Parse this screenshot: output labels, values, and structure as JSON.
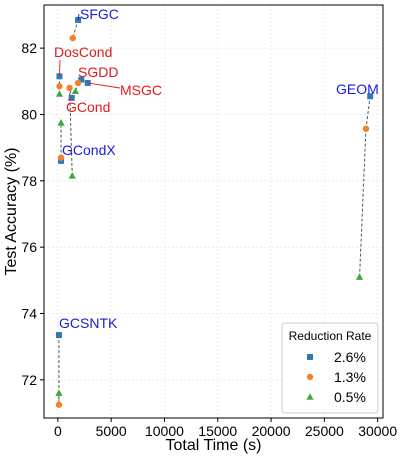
{
  "chart_data": {
    "type": "scatter",
    "xlabel": "Total Time (s)",
    "ylabel": "Test Accuracy (%)",
    "xlim": [
      -1300,
      30500
    ],
    "ylim": [
      70.85,
      83.3
    ],
    "xticks": [
      0,
      5000,
      10000,
      15000,
      20000,
      25000,
      30000
    ],
    "xtick_labels": [
      "0",
      "5000",
      "10000",
      "15000",
      "20000",
      "25000",
      "30000"
    ],
    "yticks": [
      72,
      74,
      76,
      78,
      80,
      82
    ],
    "ytick_labels": [
      "72",
      "74",
      "76",
      "78",
      "80",
      "82"
    ],
    "grid": true,
    "legend": {
      "title": "Reduction Rate",
      "position": "bottom-right",
      "entries": [
        {
          "label": "2.6%",
          "marker": "square",
          "color": "#2f7ab5"
        },
        {
          "label": "1.3%",
          "marker": "circle",
          "color": "#f0822b"
        },
        {
          "label": "0.5%",
          "marker": "triangle",
          "color": "#3ea83e"
        }
      ]
    },
    "methods": [
      {
        "name": "SFGC",
        "label_color": "#1a1adb",
        "points": {
          "2.6%": [
            1900,
            82.85
          ],
          "1.3%": [
            1400,
            82.3
          ],
          "0.5%": [
            null,
            null
          ]
        }
      },
      {
        "name": "DosCond",
        "label_color": "#e01b1b",
        "points": {
          "2.6%": [
            150,
            81.15
          ],
          "1.3%": [
            150,
            80.85
          ],
          "0.5%": [
            150,
            80.62
          ]
        }
      },
      {
        "name": "SGDD",
        "label_color": "#e01b1b",
        "points": {
          "2.6%": [
            2200,
            81.05
          ],
          "1.3%": [
            1900,
            80.95
          ],
          "0.5%": [
            1650,
            80.7
          ]
        }
      },
      {
        "name": "MSGC",
        "label_color": "#e01b1b",
        "points": {
          "2.6%": [
            2800,
            80.95
          ],
          "1.3%": [
            null,
            null
          ],
          "0.5%": [
            null,
            null
          ]
        }
      },
      {
        "name": "GCond",
        "label_color": "#e01b1b",
        "points": {
          "2.6%": [
            1300,
            80.5
          ],
          "1.3%": [
            1100,
            80.8
          ],
          "0.5%": [
            1350,
            78.15
          ]
        }
      },
      {
        "name": "GCondX",
        "label_color": "#1a1adb",
        "points": {
          "2.6%": [
            300,
            78.6
          ],
          "1.3%": [
            300,
            78.7
          ],
          "0.5%": [
            300,
            79.75
          ]
        }
      },
      {
        "name": "GCSNTK",
        "label_color": "#1a1adb",
        "points": {
          "2.6%": [
            100,
            73.35
          ],
          "1.3%": [
            100,
            71.25
          ],
          "0.5%": [
            100,
            71.6
          ]
        }
      },
      {
        "name": "GEOM",
        "label_color": "#1a1adb",
        "points": {
          "2.6%": [
            29300,
            80.55
          ],
          "1.3%": [
            28900,
            79.57
          ],
          "0.5%": [
            28300,
            75.1
          ]
        }
      }
    ]
  }
}
